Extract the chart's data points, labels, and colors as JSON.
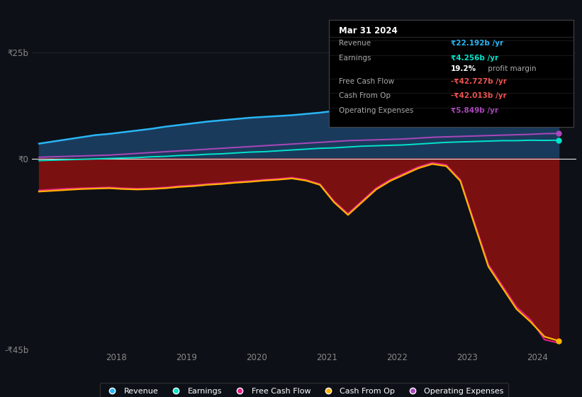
{
  "bg_color": "#0d1117",
  "plot_bg_color": "#0d1117",
  "y_min": -45,
  "y_max": 28,
  "x_min": 2016.8,
  "x_max": 2024.55,
  "y_ticks": [
    25,
    0,
    -45
  ],
  "y_tick_labels": [
    "₹25b",
    "₹0",
    "-₹45b"
  ],
  "x_ticks": [
    2018,
    2019,
    2020,
    2021,
    2022,
    2023,
    2024
  ],
  "grid_color": "#2a2e39",
  "revenue_color": "#29b6f6",
  "earnings_color": "#00e5cc",
  "fcf_color": "#e91e8c",
  "cashop_color": "#ffb300",
  "opex_color": "#ab47bc",
  "fill_revenue_color": "#1a3a5c",
  "fill_negative_color": "#7b1010",
  "tooltip": {
    "date": "Mar 31 2024",
    "revenue_label": "Revenue",
    "revenue_val": "₹22.192b /yr",
    "earnings_label": "Earnings",
    "earnings_val": "₹4.256b /yr",
    "margin_val": "19.2%",
    "margin_text": " profit margin",
    "fcf_label": "Free Cash Flow",
    "fcf_val": "-₹42.727b /yr",
    "cashop_label": "Cash From Op",
    "cashop_val": "-₹42.013b /yr",
    "opex_label": "Operating Expenses",
    "opex_val": "₹5.849b /yr"
  },
  "legend": [
    {
      "label": "Revenue",
      "color": "#29b6f6"
    },
    {
      "label": "Earnings",
      "color": "#00e5cc"
    },
    {
      "label": "Free Cash Flow",
      "color": "#e91e8c"
    },
    {
      "label": "Cash From Op",
      "color": "#ffb300"
    },
    {
      "label": "Operating Expenses",
      "color": "#ab47bc"
    }
  ],
  "years": [
    2016.9,
    2017.1,
    2017.3,
    2017.5,
    2017.7,
    2017.9,
    2018.1,
    2018.3,
    2018.5,
    2018.7,
    2018.9,
    2019.1,
    2019.3,
    2019.5,
    2019.7,
    2019.9,
    2020.1,
    2020.3,
    2020.5,
    2020.7,
    2020.9,
    2021.1,
    2021.3,
    2021.5,
    2021.7,
    2021.9,
    2022.1,
    2022.3,
    2022.5,
    2022.7,
    2022.9,
    2023.1,
    2023.3,
    2023.5,
    2023.7,
    2023.9,
    2024.1,
    2024.3
  ],
  "revenue": [
    3.5,
    4.0,
    4.5,
    5.0,
    5.5,
    5.8,
    6.2,
    6.6,
    7.0,
    7.5,
    7.9,
    8.3,
    8.7,
    9.0,
    9.3,
    9.6,
    9.8,
    10.0,
    10.2,
    10.5,
    10.8,
    11.2,
    11.8,
    12.5,
    13.2,
    13.8,
    14.5,
    15.5,
    17.0,
    18.5,
    19.2,
    19.8,
    20.5,
    21.0,
    21.5,
    22.0,
    22.192,
    22.4
  ],
  "earnings": [
    -0.5,
    -0.4,
    -0.3,
    -0.2,
    -0.1,
    0.0,
    0.1,
    0.2,
    0.4,
    0.5,
    0.7,
    0.8,
    1.0,
    1.1,
    1.3,
    1.5,
    1.6,
    1.8,
    2.0,
    2.2,
    2.4,
    2.5,
    2.7,
    2.9,
    3.0,
    3.1,
    3.2,
    3.4,
    3.6,
    3.8,
    3.9,
    4.0,
    4.1,
    4.2,
    4.2,
    4.3,
    4.256,
    4.3
  ],
  "fcf": [
    -7.5,
    -7.3,
    -7.1,
    -7.0,
    -6.9,
    -6.8,
    -7.0,
    -7.1,
    -7.0,
    -6.8,
    -6.5,
    -6.3,
    -6.0,
    -5.8,
    -5.5,
    -5.3,
    -5.0,
    -4.8,
    -4.5,
    -5.0,
    -6.0,
    -10.0,
    -13.0,
    -10.0,
    -7.0,
    -5.0,
    -3.5,
    -2.0,
    -1.0,
    -1.5,
    -5.0,
    -15.0,
    -25.0,
    -30.0,
    -35.0,
    -38.0,
    -42.727,
    -43.5
  ],
  "cashop": [
    -7.8,
    -7.6,
    -7.4,
    -7.2,
    -7.1,
    -7.0,
    -7.2,
    -7.3,
    -7.2,
    -7.0,
    -6.7,
    -6.5,
    -6.2,
    -6.0,
    -5.7,
    -5.5,
    -5.2,
    -5.0,
    -4.7,
    -5.2,
    -6.2,
    -10.3,
    -13.3,
    -10.3,
    -7.3,
    -5.3,
    -3.8,
    -2.3,
    -1.3,
    -1.8,
    -5.3,
    -15.5,
    -25.5,
    -30.5,
    -35.5,
    -38.5,
    -42.013,
    -43.0
  ],
  "opex": [
    0.3,
    0.4,
    0.5,
    0.6,
    0.7,
    0.8,
    1.0,
    1.2,
    1.4,
    1.6,
    1.8,
    2.0,
    2.2,
    2.4,
    2.6,
    2.8,
    3.0,
    3.2,
    3.4,
    3.6,
    3.8,
    4.0,
    4.2,
    4.3,
    4.4,
    4.5,
    4.6,
    4.8,
    5.0,
    5.1,
    5.2,
    5.3,
    5.4,
    5.5,
    5.6,
    5.7,
    5.849,
    5.9
  ]
}
